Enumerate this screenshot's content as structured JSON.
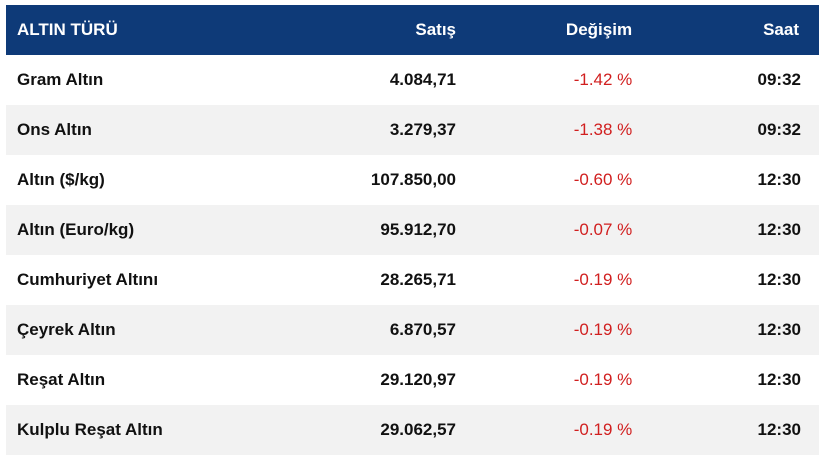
{
  "table": {
    "headers": {
      "type": "ALTIN TÜRÜ",
      "price": "Satış",
      "change": "Değişim",
      "time": "Saat"
    },
    "rows": [
      {
        "name": "Gram Altın",
        "price": "4.084,71",
        "change": "-1.42 %",
        "time": "09:32"
      },
      {
        "name": "Ons Altın",
        "price": "3.279,37",
        "change": "-1.38 %",
        "time": "09:32"
      },
      {
        "name": "Altın ($/kg)",
        "price": "107.850,00",
        "change": "-0.60 %",
        "time": "12:30"
      },
      {
        "name": "Altın (Euro/kg)",
        "price": "95.912,70",
        "change": "-0.07 %",
        "time": "12:30"
      },
      {
        "name": "Cumhuriyet Altını",
        "price": "28.265,71",
        "change": "-0.19 %",
        "time": "12:30"
      },
      {
        "name": "Çeyrek Altın",
        "price": "6.870,57",
        "change": "-0.19 %",
        "time": "12:30"
      },
      {
        "name": "Reşat Altın",
        "price": "29.120,97",
        "change": "-0.19 %",
        "time": "12:30"
      },
      {
        "name": "Kulplu Reşat Altın",
        "price": "29.062,57",
        "change": "-0.19 %",
        "time": "12:30"
      }
    ]
  },
  "colors": {
    "header_bg": "#0e3a78",
    "negative": "#d11f1f",
    "row_alt": "#f2f2f2"
  }
}
